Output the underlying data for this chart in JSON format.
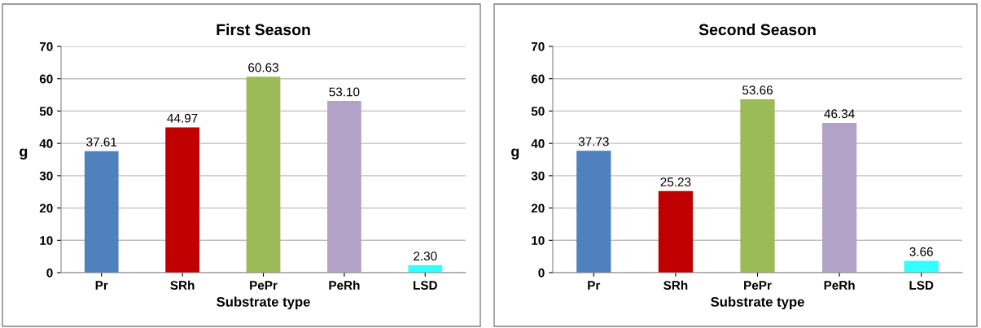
{
  "chart_data": [
    {
      "type": "bar",
      "title": "First Season",
      "xlabel": "Substrate type",
      "ylabel": "g",
      "categories": [
        "Pr",
        "SRh",
        "PePr",
        "PeRh",
        "LSD"
      ],
      "values": [
        37.61,
        44.97,
        60.63,
        53.1,
        2.3
      ],
      "value_labels": [
        "37.61",
        "44.97",
        "60.63",
        "53.10",
        "2.30"
      ],
      "colors": [
        "#4f81bd",
        "#c00000",
        "#9bbb59",
        "#b3a2c7",
        "#33ffff"
      ],
      "ylim": [
        0,
        70
      ],
      "yticks": [
        0,
        10,
        20,
        30,
        40,
        50,
        60,
        70
      ],
      "grid": "y",
      "legend": false
    },
    {
      "type": "bar",
      "title": "Second Season",
      "xlabel": "Substrate type",
      "ylabel": "g",
      "categories": [
        "Pr",
        "SRh",
        "PePr",
        "PeRh",
        "LSD"
      ],
      "values": [
        37.73,
        25.23,
        53.66,
        46.34,
        3.66
      ],
      "value_labels": [
        "37.73",
        "25.23",
        "53.66",
        "46.34",
        "3.66"
      ],
      "colors": [
        "#4f81bd",
        "#c00000",
        "#9bbb59",
        "#b3a2c7",
        "#33ffff"
      ],
      "ylim": [
        0,
        70
      ],
      "yticks": [
        0,
        10,
        20,
        30,
        40,
        50,
        60,
        70
      ],
      "grid": "y",
      "legend": false
    }
  ]
}
